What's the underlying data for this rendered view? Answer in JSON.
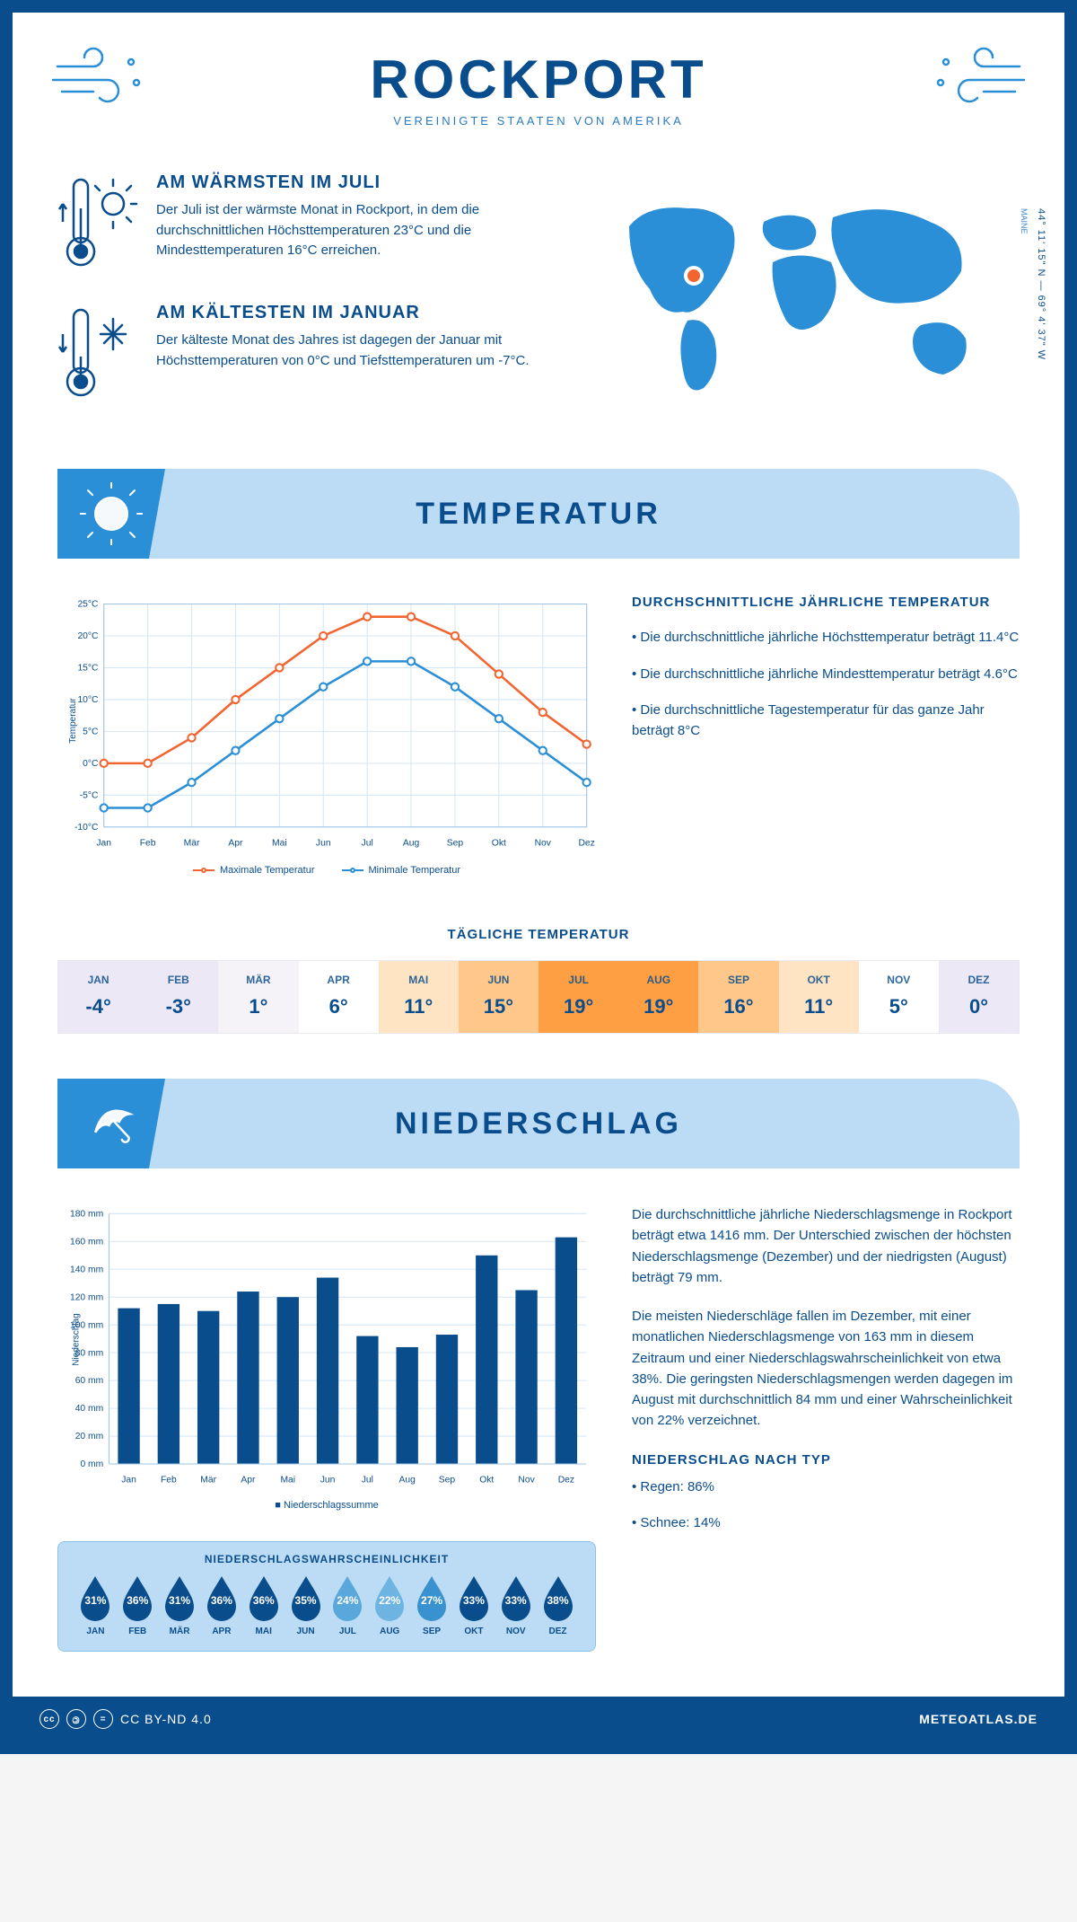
{
  "colors": {
    "primary": "#0a4d8c",
    "accent_light": "#bcdcf5",
    "accent_mid": "#2a8fd6",
    "high_line": "#f26531",
    "low_line": "#2a8fd6",
    "grid": "#d5e6f4",
    "bar": "#0a4d8c"
  },
  "header": {
    "title": "ROCKPORT",
    "subtitle": "VEREINIGTE STAATEN VON AMERIKA"
  },
  "location": {
    "region": "MAINE",
    "coords": "44° 11' 15\" N — 69° 4' 37\" W"
  },
  "facts": {
    "warm": {
      "title": "AM WÄRMSTEN IM JULI",
      "text": "Der Juli ist der wärmste Monat in Rockport, in dem die durchschnittlichen Höchsttemperaturen 23°C und die Mindesttemperaturen 16°C erreichen."
    },
    "cold": {
      "title": "AM KÄLTESTEN IM JANUAR",
      "text": "Der kälteste Monat des Jahres ist dagegen der Januar mit Höchsttemperaturen von 0°C und Tiefsttemperaturen um -7°C."
    }
  },
  "temperature": {
    "section_title": "TEMPERATUR",
    "info_title": "DURCHSCHNITTLICHE JÄHRLICHE TEMPERATUR",
    "bullets": [
      "• Die durchschnittliche jährliche Höchsttemperatur beträgt 11.4°C",
      "• Die durchschnittliche jährliche Mindesttemperatur beträgt 4.6°C",
      "• Die durchschnittliche Tagestemperatur für das ganze Jahr beträgt 8°C"
    ],
    "chart": {
      "ylabel": "Temperatur",
      "ylim": [
        -10,
        25
      ],
      "ytick_step": 5,
      "months": [
        "Jan",
        "Feb",
        "Mär",
        "Apr",
        "Mai",
        "Jun",
        "Jul",
        "Aug",
        "Sep",
        "Okt",
        "Nov",
        "Dez"
      ],
      "high": [
        0,
        0,
        4,
        10,
        15,
        20,
        23,
        23,
        20,
        14,
        8,
        3
      ],
      "low": [
        -7,
        -7,
        -3,
        2,
        7,
        12,
        16,
        16,
        12,
        7,
        2,
        -3
      ],
      "legend_high": "Maximale Temperatur",
      "legend_low": "Minimale Temperatur"
    },
    "daily": {
      "title": "TÄGLICHE TEMPERATUR",
      "months": [
        "JAN",
        "FEB",
        "MÄR",
        "APR",
        "MAI",
        "JUN",
        "JUL",
        "AUG",
        "SEP",
        "OKT",
        "NOV",
        "DEZ"
      ],
      "values": [
        "-4°",
        "-3°",
        "1°",
        "6°",
        "11°",
        "15°",
        "19°",
        "19°",
        "16°",
        "11°",
        "5°",
        "0°"
      ],
      "cell_colors": [
        "#ece8f5",
        "#ece8f5",
        "#f5f3f8",
        "#ffffff",
        "#ffe4c3",
        "#ffc78a",
        "#ff9f44",
        "#ff9f44",
        "#ffc78a",
        "#ffe4c3",
        "#ffffff",
        "#ece8f5"
      ]
    }
  },
  "precipitation": {
    "section_title": "NIEDERSCHLAG",
    "chart": {
      "ylabel": "Niederschlag",
      "ylim": [
        0,
        180
      ],
      "ytick_step": 20,
      "months": [
        "Jan",
        "Feb",
        "Mär",
        "Apr",
        "Mai",
        "Jun",
        "Jul",
        "Aug",
        "Sep",
        "Okt",
        "Nov",
        "Dez"
      ],
      "values": [
        112,
        115,
        110,
        124,
        120,
        134,
        92,
        84,
        93,
        150,
        125,
        163
      ],
      "legend": "Niederschlagssumme"
    },
    "text1": "Die durchschnittliche jährliche Niederschlagsmenge in Rockport beträgt etwa 1416 mm. Der Unterschied zwischen der höchsten Niederschlagsmenge (Dezember) und der niedrigsten (August) beträgt 79 mm.",
    "text2": "Die meisten Niederschläge fallen im Dezember, mit einer monatlichen Niederschlagsmenge von 163 mm in diesem Zeitraum und einer Niederschlagswahrscheinlichkeit von etwa 38%. Die geringsten Niederschlagsmengen werden dagegen im August mit durchschnittlich 84 mm und einer Wahrscheinlichkeit von 22% verzeichnet.",
    "type_title": "NIEDERSCHLAG NACH TYP",
    "type_bullets": [
      "• Regen: 86%",
      "• Schnee: 14%"
    ],
    "probability": {
      "title": "NIEDERSCHLAGSWAHRSCHEINLICHKEIT",
      "months": [
        "JAN",
        "FEB",
        "MÄR",
        "APR",
        "MAI",
        "JUN",
        "JUL",
        "AUG",
        "SEP",
        "OKT",
        "NOV",
        "DEZ"
      ],
      "percent": [
        31,
        36,
        31,
        36,
        36,
        35,
        24,
        22,
        27,
        33,
        33,
        38
      ],
      "colors": [
        "#0a4d8c",
        "#0a4d8c",
        "#0a4d8c",
        "#0a4d8c",
        "#0a4d8c",
        "#0a4d8c",
        "#5aa7dc",
        "#6eb4e3",
        "#3a91cf",
        "#0a4d8c",
        "#0a4d8c",
        "#0a4d8c"
      ]
    }
  },
  "footer": {
    "license": "CC BY-ND 4.0",
    "site": "METEOATLAS.DE"
  }
}
